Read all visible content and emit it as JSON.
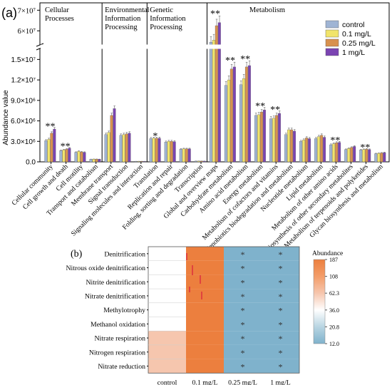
{
  "panel_a": {
    "panel_label": "(a)",
    "ylabel": "Abundance value",
    "groups": [
      "Cellular\nProcesses",
      "Environmental\nInformation\nProcessing",
      "Genetic\nInformation\nProcessing",
      "Metabolism"
    ],
    "legend": [
      "control",
      "0.1 mg/L",
      "0.25 mg/L",
      "1 mg/L"
    ],
    "colors": [
      "#9fb4d4",
      "#f1e46a",
      "#d8914e",
      "#7b44b2"
    ],
    "y_ticks_lower": [
      "0.0",
      "3.0×10⁶",
      "6.0×10⁶",
      "9.0×10⁶",
      "1.2×10⁷",
      "1.5×10⁷"
    ],
    "y_ticks_upper": [
      "6×10⁷",
      "7×10⁷"
    ]
  },
  "panel_b": {
    "panel_label": "(b)",
    "legend_title": "Abundance",
    "scale_labels": [
      "187",
      "108",
      "62.3",
      "36.0",
      "20.8",
      "12.0"
    ],
    "scale_colors": [
      "#ec7f3e",
      "#f39d69",
      "#f6c6ae",
      "#ffffff",
      "#b8d5e2",
      "#7fb2cc"
    ]
  },
  "chart_data": [
    {
      "type": "bar",
      "categories": [
        "Cellular community",
        "Cell growth and death",
        "Cell motility",
        "Transport and catabolism",
        "Membrane transport",
        "Signal transduction",
        "Signaling molecules and interaction",
        "Translation",
        "Replication and repair",
        "Folding, sorting and degradation",
        "Transcription",
        "Global and overview maps",
        "Carbohydrate metabolism",
        "Amino acid metabolism",
        "Energy metabolism",
        "Metabolism of cofactors and vitamins",
        "Xenobiotics biodegradation and metabolism",
        "Nucleotide metabolism",
        "Lipid metabolism",
        "Metabolism of other amino acids",
        "Biosynthesis of other secondary metabolites",
        "Metabolism of terpenoids and polyketides",
        "Glycan biosynthesis and metabolism"
      ],
      "group_spans": [
        [
          0,
          3
        ],
        [
          4,
          6
        ],
        [
          7,
          10
        ],
        [
          11,
          22
        ]
      ],
      "series": [
        {
          "name": "control",
          "values": [
            3100000,
            1650000,
            1400000,
            380000,
            4000000,
            3900000,
            80000,
            3400000,
            2900000,
            1850000,
            110000,
            54500000,
            11200000,
            11300000,
            6800000,
            6300000,
            4000000,
            3000000,
            3400000,
            2500000,
            1800000,
            1750000,
            1200000
          ]
        },
        {
          "name": "0.1 mg/L",
          "values": [
            3300000,
            1750000,
            1550000,
            400000,
            4300000,
            4000000,
            85000,
            3450000,
            3000000,
            1900000,
            115000,
            55500000,
            12000000,
            12200000,
            6900000,
            6400000,
            4700000,
            3200000,
            3700000,
            2650000,
            1950000,
            1800000,
            1250000
          ]
        },
        {
          "name": "0.25 mg/L",
          "values": [
            4200000,
            1850000,
            1450000,
            400000,
            6800000,
            4100000,
            85000,
            3450000,
            3000000,
            1900000,
            115000,
            62500000,
            13600000,
            13900000,
            7300000,
            6800000,
            4700000,
            3500000,
            3900000,
            2800000,
            2100000,
            1850000,
            1300000
          ]
        },
        {
          "name": "1 mg/L",
          "values": [
            4800000,
            2000000,
            1400000,
            380000,
            7800000,
            4200000,
            80000,
            3450000,
            2950000,
            1900000,
            110000,
            64000000,
            13900000,
            14100000,
            7600000,
            7100000,
            4500000,
            3400000,
            3600000,
            2850000,
            2250000,
            1800000,
            1350000
          ]
        }
      ],
      "significance": [
        {
          "category": "Cellular community",
          "label": "**"
        },
        {
          "category": "Cell growth and death",
          "label": "**"
        },
        {
          "category": "Translation",
          "label": "*"
        },
        {
          "category": "Global and overview maps",
          "label": "**"
        },
        {
          "category": "Carbohydrate metabolism",
          "label": "**"
        },
        {
          "category": "Amino acid metabolism",
          "label": "**"
        },
        {
          "category": "Energy metabolism",
          "label": "**"
        },
        {
          "category": "Metabolism of cofactors and vitamins",
          "label": "**"
        },
        {
          "category": "Metabolism of other amino acids",
          "label": "**"
        },
        {
          "category": "Metabolism of terpenoids and polyketides",
          "label": "**"
        }
      ],
      "ylabel": "Abundance value",
      "axis_break": {
        "lower_range": [
          0,
          16500000
        ],
        "upper_range": [
          53500000,
          71500000
        ]
      },
      "grid": false,
      "legend_position": "top-right"
    },
    {
      "type": "heatmap",
      "rows": [
        "Denitrification",
        "Nitrous oxide denitrification",
        "Nitrite denitrification",
        "Nitrate denitrification",
        "Methylotrophy",
        "Methanol oxidation",
        "Nitrate respiration",
        "Nitrogen respiration",
        "Nitrate reduction"
      ],
      "columns": [
        "control",
        "0.1 mg/L",
        "0.25 mg/L",
        "1 mg/L"
      ],
      "values": [
        [
          36.0,
          187,
          12.0,
          12.0
        ],
        [
          36.0,
          187,
          12.0,
          12.0
        ],
        [
          36.0,
          187,
          12.0,
          12.0
        ],
        [
          36.0,
          187,
          12.0,
          12.0
        ],
        [
          36.0,
          187,
          12.0,
          12.0
        ],
        [
          36.0,
          187,
          12.0,
          12.0
        ],
        [
          62.3,
          187,
          12.0,
          12.0
        ],
        [
          62.3,
          187,
          12.0,
          12.0
        ],
        [
          62.3,
          187,
          12.0,
          12.0
        ]
      ],
      "markers": [
        [
          "",
          "",
          "*",
          "*"
        ],
        [
          "",
          "",
          "*",
          "*"
        ],
        [
          "",
          "",
          "*",
          "*"
        ],
        [
          "",
          "",
          "*",
          "*"
        ],
        [
          "",
          "",
          "*",
          "*"
        ],
        [
          "",
          "",
          "*",
          "*"
        ],
        [
          "",
          "",
          "*",
          "*"
        ],
        [
          "",
          "",
          "*",
          "*"
        ],
        [
          "",
          "",
          "*",
          "*"
        ]
      ],
      "color_scale": {
        "title": "Abundance",
        "ticks": [
          187,
          108,
          62.3,
          36.0,
          20.8,
          12.0
        ]
      }
    }
  ]
}
